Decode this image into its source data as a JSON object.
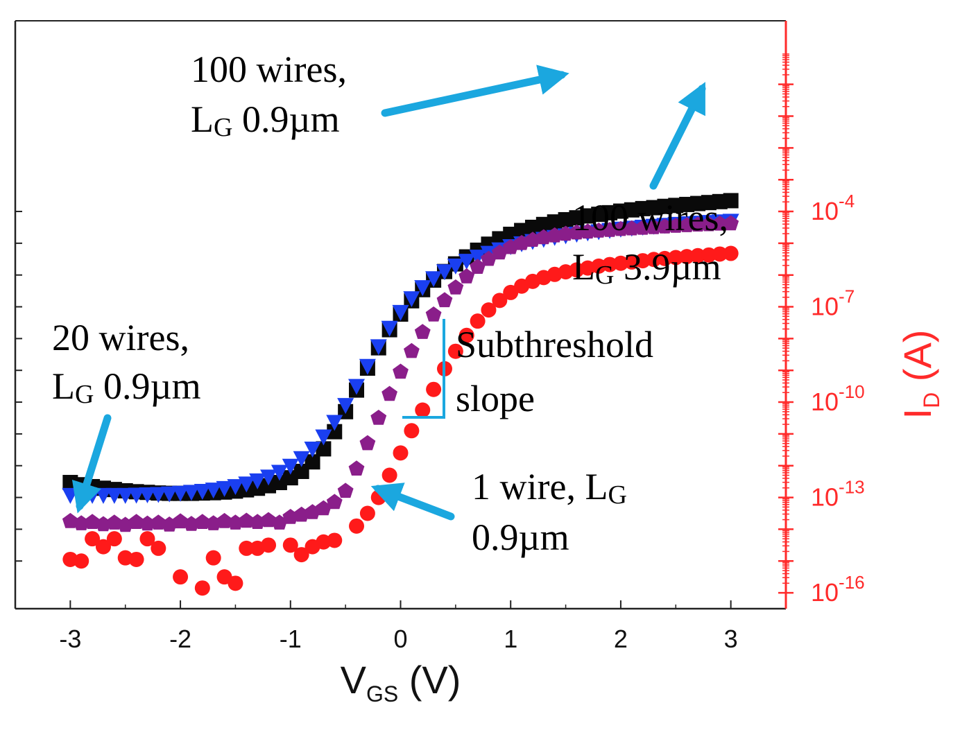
{
  "chart_data": {
    "type": "scatter",
    "xlabel": {
      "main": "V",
      "sub": "GS",
      "unit": " (V)"
    },
    "ylabel": {
      "main": "I",
      "sub": "D",
      "unit": " (A)"
    },
    "xlim": [
      -3.5,
      3.5
    ],
    "ylim_log10": [
      -16.5,
      2
    ],
    "x_ticks": [
      {
        "value": -3,
        "label": "-3"
      },
      {
        "value": -2,
        "label": "-2"
      },
      {
        "value": -1,
        "label": "-1"
      },
      {
        "value": 0,
        "label": "0"
      },
      {
        "value": 1,
        "label": "1"
      },
      {
        "value": 2,
        "label": "2"
      },
      {
        "value": 3,
        "label": "3"
      }
    ],
    "y_tick_labels": [
      {
        "exp": -4,
        "base": "10",
        "sup": "-4"
      },
      {
        "exp": -7,
        "base": "10",
        "sup": "-7"
      },
      {
        "exp": -10,
        "base": "10",
        "sup": "-10"
      },
      {
        "exp": -13,
        "base": "10",
        "sup": "-13"
      },
      {
        "exp": -16,
        "base": "10",
        "sup": "-16"
      }
    ],
    "left_ticks_log10": [
      -4,
      -5,
      -6,
      -7,
      -8,
      -9,
      -10,
      -11,
      -12,
      -13,
      -14,
      -15
    ],
    "right_ticks_log10": [
      0,
      -1,
      -2,
      -3,
      -4,
      -5,
      -6,
      -7,
      -8,
      -9,
      -10,
      -11,
      -12,
      -13,
      -14,
      -15,
      -16
    ],
    "x": [
      -3.0,
      -2.9,
      -2.8,
      -2.7,
      -2.6,
      -2.5,
      -2.4,
      -2.3,
      -2.2,
      -2.1,
      -2.0,
      -1.9,
      -1.8,
      -1.7,
      -1.6,
      -1.5,
      -1.4,
      -1.3,
      -1.2,
      -1.1,
      -1.0,
      -0.9,
      -0.8,
      -0.7,
      -0.6,
      -0.5,
      -0.4,
      -0.3,
      -0.2,
      -0.1,
      0.0,
      0.1,
      0.2,
      0.3,
      0.4,
      0.5,
      0.6,
      0.7,
      0.8,
      0.9,
      1.0,
      1.1,
      1.2,
      1.3,
      1.4,
      1.5,
      1.6,
      1.7,
      1.8,
      1.9,
      2.0,
      2.1,
      2.2,
      2.3,
      2.4,
      2.5,
      2.6,
      2.7,
      2.8,
      2.9,
      3.0
    ],
    "series": [
      {
        "name": "20 wires, LG 0.9µm",
        "marker": "square",
        "color": "#0a0a0a",
        "log10_I": [
          -12.53,
          -12.6,
          -12.66,
          -12.71,
          -12.75,
          -12.79,
          -12.82,
          -12.84,
          -12.86,
          -12.87,
          -12.87,
          -12.87,
          -12.86,
          -12.85,
          -12.83,
          -12.8,
          -12.76,
          -12.71,
          -12.63,
          -12.53,
          -12.38,
          -12.18,
          -11.88,
          -11.47,
          -10.93,
          -10.3,
          -9.62,
          -8.93,
          -8.29,
          -7.72,
          -7.23,
          -6.81,
          -6.46,
          -6.16,
          -5.89,
          -5.65,
          -5.43,
          -5.22,
          -5.03,
          -4.86,
          -4.72,
          -4.6,
          -4.5,
          -4.41,
          -4.33,
          -4.26,
          -4.2,
          -4.14,
          -4.09,
          -4.04,
          -3.99,
          -3.95,
          -3.91,
          -3.88,
          -3.84,
          -3.81,
          -3.78,
          -3.75,
          -3.72,
          -3.69,
          -3.66
        ]
      },
      {
        "name": "100 wires, LG 0.9µm",
        "marker": "triangle-down",
        "color": "#1a3ff0",
        "log10_I": [
          -12.92,
          -12.92,
          -12.92,
          -12.92,
          -12.92,
          -12.92,
          -12.91,
          -12.9,
          -12.89,
          -12.87,
          -12.85,
          -12.82,
          -12.79,
          -12.75,
          -12.7,
          -12.64,
          -12.56,
          -12.46,
          -12.34,
          -12.19,
          -12.0,
          -11.76,
          -11.46,
          -11.08,
          -10.62,
          -10.09,
          -9.49,
          -8.86,
          -8.24,
          -7.66,
          -7.16,
          -6.73,
          -6.38,
          -6.1,
          -5.88,
          -5.7,
          -5.55,
          -5.42,
          -5.3,
          -5.19,
          -5.09,
          -5.0,
          -4.93,
          -4.86,
          -4.8,
          -4.75,
          -4.7,
          -4.66,
          -4.62,
          -4.58,
          -4.54,
          -4.51,
          -4.48,
          -4.45,
          -4.42,
          -4.39,
          -4.37,
          -4.35,
          -4.33,
          -4.31,
          -4.29
        ]
      },
      {
        "name": "100 wires, LG 3.9µm",
        "marker": "pentagon",
        "color": "#8a1e8a",
        "log10_I": [
          -13.75,
          -13.82,
          -13.78,
          -13.85,
          -13.8,
          -13.87,
          -13.78,
          -13.83,
          -13.8,
          -13.86,
          -13.76,
          -13.84,
          -13.78,
          -13.82,
          -13.75,
          -13.8,
          -13.74,
          -13.78,
          -13.72,
          -13.8,
          -13.62,
          -13.55,
          -13.47,
          -13.35,
          -13.15,
          -12.8,
          -12.1,
          -11.3,
          -10.5,
          -9.75,
          -9.05,
          -8.4,
          -7.8,
          -7.25,
          -6.8,
          -6.4,
          -6.05,
          -5.75,
          -5.5,
          -5.3,
          -5.13,
          -5.0,
          -4.9,
          -4.82,
          -4.76,
          -4.71,
          -4.67,
          -4.64,
          -4.61,
          -4.59,
          -4.56,
          -4.54,
          -4.52,
          -4.5,
          -4.48,
          -4.46,
          -4.44,
          -4.42,
          -4.41,
          -4.39,
          -4.38
        ]
      },
      {
        "name": "1 wire, LG 0.9µm",
        "marker": "circle",
        "color": "#ff1a1a",
        "log10_I": [
          -14.95,
          -15.0,
          -14.3,
          -14.55,
          -14.3,
          -14.9,
          -14.95,
          -14.3,
          -14.6,
          null,
          -15.5,
          null,
          -15.85,
          -14.9,
          -15.5,
          -15.7,
          -14.6,
          -14.6,
          -14.5,
          null,
          -14.5,
          -14.8,
          -14.55,
          -14.4,
          -14.35,
          null,
          -13.9,
          -13.5,
          -13.0,
          -12.3,
          -11.6,
          -10.9,
          -10.25,
          -9.6,
          -8.95,
          -8.4,
          -7.9,
          -7.45,
          -7.1,
          -6.8,
          -6.55,
          -6.35,
          -6.2,
          -6.08,
          -5.98,
          -5.9,
          -5.84,
          -5.78,
          -5.72,
          -5.67,
          -5.63,
          -5.59,
          -5.55,
          -5.51,
          -5.48,
          -5.45,
          -5.42,
          -5.39,
          -5.37,
          -5.34,
          -5.32
        ]
      }
    ],
    "annotations": [
      {
        "id": "a100w09",
        "lines": [
          [
            "100 wires,"
          ],
          [
            "L",
            "G",
            " 0.9µm"
          ]
        ]
      },
      {
        "id": "a100w39",
        "lines": [
          [
            "100 wires,"
          ],
          [
            "L",
            "G",
            " 3.9µm"
          ]
        ]
      },
      {
        "id": "a20w09",
        "lines": [
          [
            "20 wires,"
          ],
          [
            "L",
            "G",
            " 0.9µm"
          ]
        ]
      },
      {
        "id": "a1w09",
        "lines": [
          [
            "1 wire, L",
            "G",
            ""
          ],
          [
            "0.9µm"
          ]
        ]
      },
      {
        "id": "asub",
        "lines": [
          [
            "Subthreshold"
          ],
          [
            "slope"
          ]
        ]
      }
    ],
    "arrow_color": "#1ba7df",
    "legend": "none"
  }
}
